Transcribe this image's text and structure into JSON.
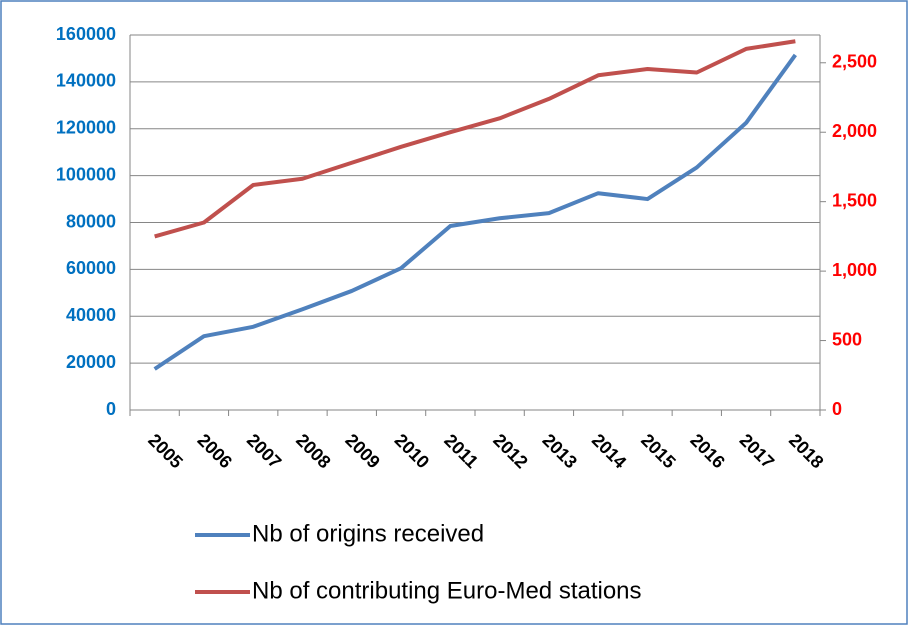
{
  "chart_data": {
    "type": "line",
    "categories": [
      "2005",
      "2006",
      "2007",
      "2008",
      "2009",
      "2010",
      "2011",
      "2012",
      "2013",
      "2014",
      "2015",
      "2016",
      "2017",
      "2018"
    ],
    "series": [
      {
        "name": "Nb of origins received",
        "color": "#4f81bd",
        "values": [
          17500,
          31500,
          35500,
          43000,
          50800,
          60500,
          78500,
          81800,
          84000,
          92500,
          90000,
          103500,
          122500,
          151500
        ]
      },
      {
        "name": "Nb of contributing Euro-Med stations",
        "color": "#c0504d",
        "axis": "y2",
        "values": [
          1250,
          1350,
          1620,
          1665,
          1780,
          1895,
          2000,
          2100,
          2240,
          2410,
          2455,
          2430,
          2600,
          2655
        ]
      }
    ],
    "ylim": [
      0,
      160000
    ],
    "yticks": [
      0,
      20000,
      40000,
      60000,
      80000,
      100000,
      120000,
      140000,
      160000
    ],
    "y2lim": [
      0,
      2700
    ],
    "y2ticks": [
      0,
      500,
      {
        "value": 1000,
        "label": "1,000"
      },
      {
        "value": 1500,
        "label": "1,500"
      },
      {
        "value": 2000,
        "label": "2,000"
      },
      {
        "value": 2500,
        "label": "2,500"
      }
    ],
    "grid": true,
    "yaxis_color": "#0070c0",
    "y2axis_color": "#ff0000"
  }
}
